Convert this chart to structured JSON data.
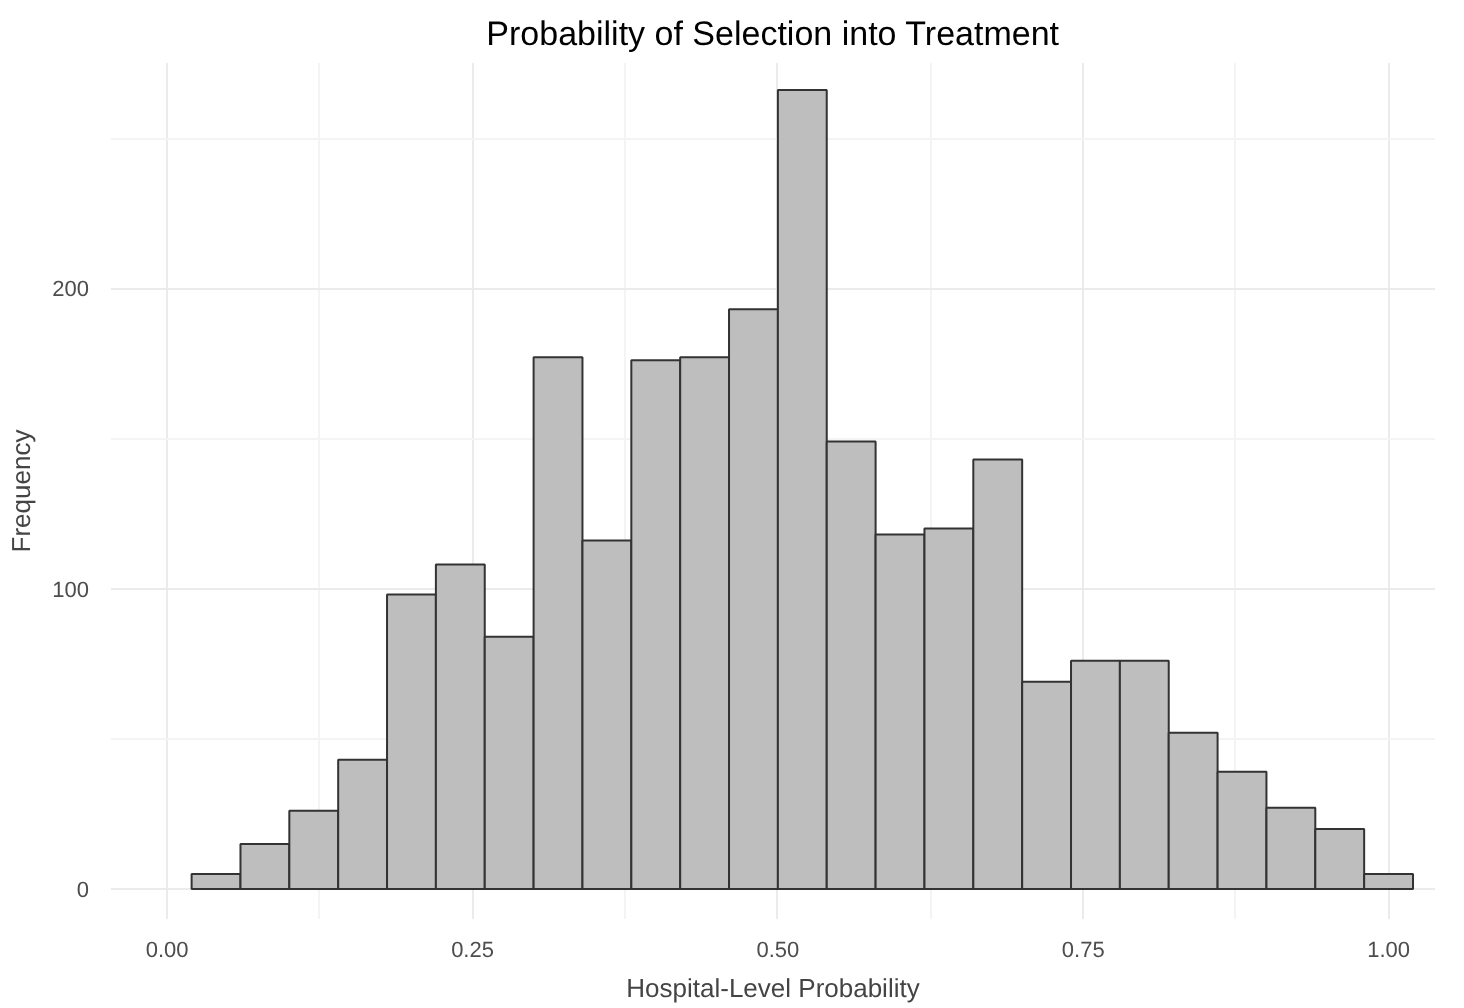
{
  "chart_data": {
    "type": "histogram",
    "title": "Probability of Selection into Treatment",
    "xlabel": "Hospital-Level Probability",
    "ylabel": "Frequency",
    "bins": [
      0.02,
      0.06,
      0.1,
      0.14,
      0.18,
      0.22,
      0.26,
      0.3,
      0.34,
      0.38,
      0.42,
      0.46,
      0.5,
      0.54,
      0.58,
      0.62,
      0.66,
      0.7,
      0.74,
      0.78,
      0.82,
      0.86,
      0.9,
      0.94,
      0.98,
      1.02
    ],
    "values": [
      5,
      15,
      26,
      43,
      98,
      108,
      84,
      177,
      116,
      176,
      177,
      193,
      266,
      149,
      118,
      120,
      143,
      69,
      76,
      76,
      52,
      39,
      27,
      20,
      5
    ],
    "color": "#bebebe",
    "xlim": [
      -0.046,
      1.038
    ],
    "ylim": [
      -10,
      275
    ],
    "xticks": [
      {
        "value": 0,
        "label": "0.00"
      },
      0.25,
      {
        "value": 0.5,
        "label": "0.50"
      },
      0.75,
      {
        "value": 1,
        "label": "1.00"
      }
    ],
    "yticks": [
      0,
      100,
      200
    ],
    "grid": true
  }
}
